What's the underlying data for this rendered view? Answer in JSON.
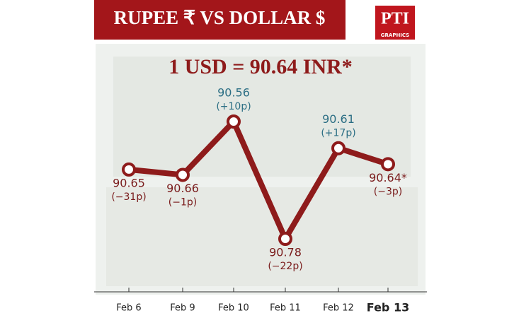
{
  "title": "RUPEE ₹   VS   DOLLAR $",
  "logo": {
    "text": "PTI",
    "subtext": "GRAPHICS"
  },
  "chart_data": {
    "type": "line",
    "headline": "1 USD = 90.64 INR*",
    "categories": [
      "Feb 6",
      "Feb 9",
      "Feb 10",
      "Feb 11",
      "Feb 12",
      "Feb 13"
    ],
    "series": [
      {
        "color": "#8e1b1b",
        "values": [
          90.65,
          90.66,
          90.56,
          90.78,
          90.61,
          90.64
        ],
        "value_labels": [
          "90.65",
          "90.66",
          "90.56",
          "90.78",
          "90.61",
          "90.64*"
        ],
        "changes": [
          -31,
          -1,
          10,
          -22,
          17,
          -3
        ],
        "change_labels": [
          "(−31p)",
          "(−1p)",
          "(+10p)",
          "(−22p)",
          "(+17p)",
          "(−3p)"
        ]
      }
    ],
    "y_inverted": true,
    "up_color": "#2b6e84",
    "down_color": "#7a1c1c"
  }
}
